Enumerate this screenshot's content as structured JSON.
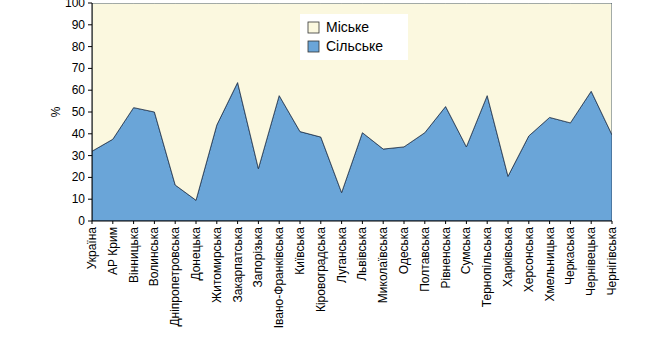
{
  "chart_data": {
    "type": "area",
    "stacked": true,
    "y_label": "%",
    "categories": [
      "Україна",
      "АР Крим",
      "Вінницька",
      "Волинська",
      "Дніпропетровська",
      "Донецька",
      "Житомирська",
      "Закарпатська",
      "Запорізька",
      "Івано-Франківська",
      "Київська",
      "Кіровоградська",
      "Луганська",
      "Львівська",
      "Миколаївська",
      "Одеська",
      "Полтавська",
      "Рівненська",
      "Сумська",
      "Тернопільська",
      "Харківська",
      "Херсонська",
      "Хмельницька",
      "Черкаська",
      "Чернівецька",
      "Чернігівська"
    ],
    "series": [
      {
        "name": "Сільське",
        "color": "#6aa5d8",
        "values": [
          32,
          37.5,
          52,
          50,
          16.5,
          9.5,
          44,
          63.5,
          24,
          57.5,
          41,
          38.5,
          13,
          40.5,
          33,
          34,
          40.5,
          52.5,
          34,
          57.5,
          20.5,
          39,
          47.5,
          45,
          59.5,
          39.5
        ]
      },
      {
        "name": "Міське",
        "color": "#fbf8df",
        "values": [
          68,
          62.5,
          48,
          50,
          83.5,
          90.5,
          56,
          36.5,
          76,
          42.5,
          59,
          61.5,
          87,
          59.5,
          67,
          66,
          59.5,
          47.5,
          66,
          42.5,
          79.5,
          61,
          52.5,
          55,
          40.5,
          60.5
        ]
      }
    ],
    "ylim": [
      0,
      100
    ],
    "yticks": [
      0,
      10,
      20,
      30,
      40,
      50,
      60,
      70,
      80,
      90,
      100
    ],
    "legend": "top",
    "grid": false
  }
}
